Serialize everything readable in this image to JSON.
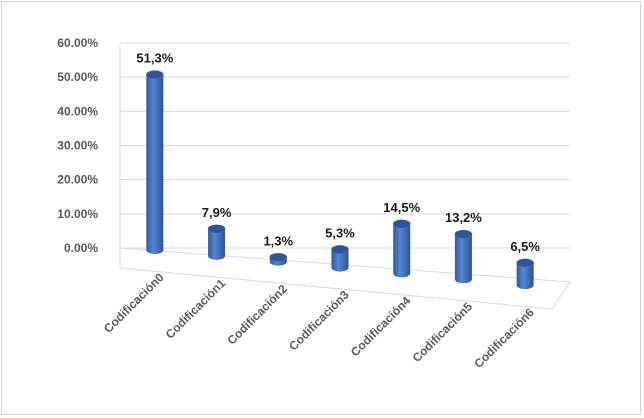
{
  "chart_data": {
    "type": "bar",
    "style": "3d-cylinder",
    "categories": [
      "Codificación0",
      "Codificación1",
      "Codificación2",
      "Codificación3",
      "Codificación4",
      "Codificación5",
      "Codificación6"
    ],
    "values": [
      51.3,
      7.9,
      1.3,
      5.3,
      14.5,
      13.2,
      6.5
    ],
    "data_labels": [
      "51,3%",
      "7,9%",
      "1,3%",
      "5,3%",
      "14,5%",
      "13,2%",
      "6,5%"
    ],
    "y_ticks": [
      "0.00%",
      "10.00%",
      "20.00%",
      "30.00%",
      "40.00%",
      "50.00%",
      "60.00%"
    ],
    "ylim": [
      0,
      60
    ],
    "grid": true,
    "legend": "none",
    "bar_color": "#4472c4",
    "bar_top_color": "#2f5597",
    "grid_color": "#d9d9d9"
  }
}
